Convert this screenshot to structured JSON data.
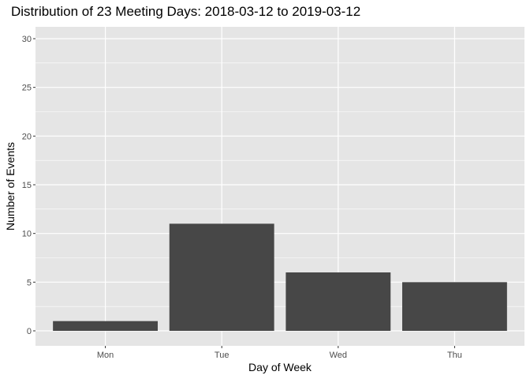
{
  "chart_data": {
    "type": "bar",
    "title": "Distribution of 23 Meeting Days: 2018-03-12 to 2019-03-12",
    "xlabel": "Day of Week",
    "ylabel": "Number of Events",
    "categories": [
      "Mon",
      "Tue",
      "Wed",
      "Thu"
    ],
    "values": [
      1,
      11,
      6,
      5
    ],
    "ylim": [
      0,
      31
    ],
    "yticks": [
      0,
      5,
      10,
      15,
      20,
      25,
      30
    ],
    "grid": true,
    "legend": "none",
    "colors": {
      "panel": "#e5e5e5",
      "gridline": "#ffffff",
      "bar": "#474747",
      "tick_text": "#4d4d4d",
      "tick_mark": "#333333"
    }
  }
}
